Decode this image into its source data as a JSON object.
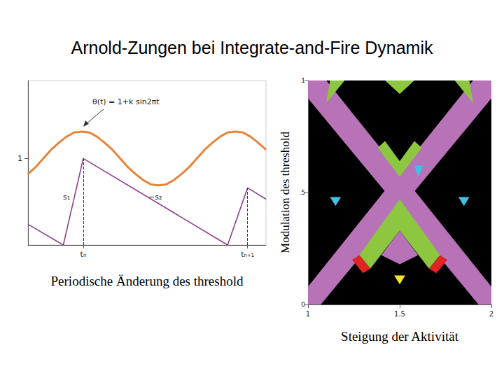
{
  "title": "Arnold-Zungen bei Integrate-and-Fire Dynamik",
  "chart_data": [
    {
      "type": "line",
      "x_label": "Periodische Änderung des threshold",
      "annotations": [
        "θ(t) = 1+k sin2πt",
        "s₁",
        "−s₂"
      ],
      "xlim": [
        -0.1,
        1.45
      ],
      "xticks": [
        {
          "value": 0.26,
          "label": "tₙ"
        },
        {
          "value": 1.33,
          "label": "tₙ₊₁"
        }
      ],
      "ylim": [
        0,
        1.9
      ],
      "yticks": [
        1
      ],
      "series": [
        {
          "color": "#e8843a",
          "x": [
            -0.1,
            -0.05,
            0,
            0.05,
            0.1,
            0.15,
            0.2,
            0.25,
            0.3,
            0.35,
            0.4,
            0.45,
            0.5,
            0.55,
            0.6,
            0.65,
            0.7,
            0.75,
            0.8,
            0.85,
            0.9,
            0.95,
            1,
            1.05,
            1.1,
            1.15,
            1.2,
            1.25,
            1.3,
            1.35,
            1.4,
            1.45
          ],
          "values": [
            0.82,
            0.9,
            1,
            1.1,
            1.18,
            1.25,
            1.3,
            1.31,
            1.3,
            1.25,
            1.18,
            1.1,
            1,
            0.9,
            0.82,
            0.75,
            0.7,
            0.69,
            0.7,
            0.75,
            0.82,
            0.9,
            1,
            1.1,
            1.18,
            1.25,
            1.3,
            1.31,
            1.3,
            1.25,
            1.18,
            1.1
          ]
        },
        {
          "color": "#8e3f95",
          "x": [
            -0.1,
            0.13,
            0.26,
            1.2,
            1.33,
            1.45
          ],
          "values": [
            0.24,
            0,
            1.0,
            0,
            0.66,
            0.53
          ]
        }
      ]
    },
    {
      "type": "polygon",
      "x_label": "Steigung der Aktivität",
      "y_label": "Modulation des threshold",
      "xlim": [
        1,
        2
      ],
      "xticks": [
        1,
        {
          "value": 1.5,
          "label": "1.5"
        },
        2
      ],
      "ylim": [
        0,
        1
      ],
      "yticks": [
        0,
        {
          "value": 0.5,
          "label": ".5"
        },
        1
      ],
      "regions": [
        {
          "color": "#b873b8",
          "points": [
            [
              1,
              1
            ],
            [
              1.1,
              1
            ],
            [
              2,
              0.08
            ],
            [
              2,
              0
            ],
            [
              1.93,
              0
            ],
            [
              1,
              0.92
            ]
          ]
        },
        {
          "color": "#b873b8",
          "points": [
            [
              2,
              1
            ],
            [
              1.9,
              1
            ],
            [
              1,
              0.08
            ],
            [
              1,
              0
            ],
            [
              1.07,
              0
            ],
            [
              2,
              0.92
            ]
          ]
        },
        {
          "color": "#8dc63f",
          "points": [
            [
              1.5,
              0.47
            ],
            [
              1.72,
              0.22
            ],
            [
              1.66,
              0.16
            ],
            [
              1.5,
              0.33
            ],
            [
              1.34,
              0.16
            ],
            [
              1.28,
              0.22
            ]
          ]
        },
        {
          "color": "#b873b8",
          "points": [
            [
              1.5,
              0.33
            ],
            [
              1.6,
              0.22
            ],
            [
              1.5,
              0.18
            ],
            [
              1.4,
              0.22
            ]
          ]
        },
        {
          "color": "#8dc63f",
          "points": [
            [
              1.5,
              0.57
            ],
            [
              1.62,
              0.7
            ],
            [
              1.58,
              0.73
            ],
            [
              1.5,
              0.64
            ],
            [
              1.42,
              0.73
            ],
            [
              1.38,
              0.7
            ]
          ]
        },
        {
          "color": "#8dc63f",
          "points": [
            [
              1.42,
              1
            ],
            [
              1.58,
              1
            ],
            [
              1.5,
              0.94
            ]
          ]
        },
        {
          "color": "#8dc63f",
          "points": [
            [
              1.12,
              1
            ],
            [
              1.2,
              1
            ],
            [
              1.1,
              0.9
            ]
          ]
        },
        {
          "color": "#8dc63f",
          "points": [
            [
              1.88,
              1
            ],
            [
              1.8,
              1
            ],
            [
              1.9,
              0.9
            ]
          ]
        },
        {
          "color": "#e02424",
          "points": [
            [
              1.28,
              0.22
            ],
            [
              1.34,
              0.16
            ],
            [
              1.3,
              0.14
            ],
            [
              1.24,
              0.2
            ]
          ]
        },
        {
          "color": "#e02424",
          "points": [
            [
              1.72,
              0.22
            ],
            [
              1.66,
              0.16
            ],
            [
              1.7,
              0.14
            ],
            [
              1.76,
              0.2
            ]
          ]
        },
        {
          "color": "#3fc0e4",
          "points": [
            [
              1.58,
              0.62
            ],
            [
              1.63,
              0.62
            ],
            [
              1.6,
              0.57
            ]
          ]
        },
        {
          "color": "#3fc0e4",
          "points": [
            [
              1.12,
              0.48
            ],
            [
              1.18,
              0.48
            ],
            [
              1.15,
              0.44
            ]
          ]
        },
        {
          "color": "#3fc0e4",
          "points": [
            [
              1.82,
              0.48
            ],
            [
              1.88,
              0.48
            ],
            [
              1.85,
              0.44
            ]
          ]
        },
        {
          "color": "#f2e427",
          "points": [
            [
              1.47,
              0.13
            ],
            [
              1.53,
              0.13
            ],
            [
              1.5,
              0.09
            ]
          ]
        }
      ]
    }
  ]
}
